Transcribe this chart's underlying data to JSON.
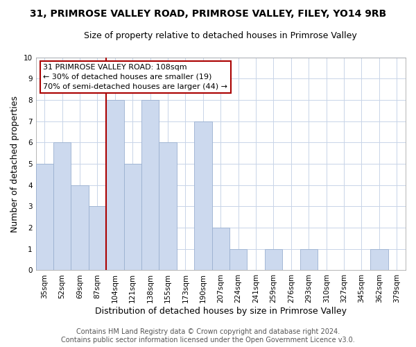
{
  "title": "31, PRIMROSE VALLEY ROAD, PRIMROSE VALLEY, FILEY, YO14 9RB",
  "subtitle": "Size of property relative to detached houses in Primrose Valley",
  "xlabel": "Distribution of detached houses by size in Primrose Valley",
  "ylabel": "Number of detached properties",
  "bar_labels": [
    "35sqm",
    "52sqm",
    "69sqm",
    "87sqm",
    "104sqm",
    "121sqm",
    "138sqm",
    "155sqm",
    "173sqm",
    "190sqm",
    "207sqm",
    "224sqm",
    "241sqm",
    "259sqm",
    "276sqm",
    "293sqm",
    "310sqm",
    "327sqm",
    "345sqm",
    "362sqm",
    "379sqm"
  ],
  "bar_values": [
    5,
    6,
    4,
    3,
    8,
    5,
    8,
    6,
    0,
    7,
    2,
    1,
    0,
    1,
    0,
    1,
    0,
    0,
    0,
    1,
    0
  ],
  "bar_color": "#ccd9ee",
  "bar_edge_color": "#9ab0d0",
  "property_line_index": 4,
  "property_line_color": "#aa0000",
  "ylim": [
    0,
    10
  ],
  "yticks": [
    0,
    1,
    2,
    3,
    4,
    5,
    6,
    7,
    8,
    9,
    10
  ],
  "annotation_title": "31 PRIMROSE VALLEY ROAD: 108sqm",
  "annotation_line1": "← 30% of detached houses are smaller (19)",
  "annotation_line2": "70% of semi-detached houses are larger (44) →",
  "annotation_box_color": "#ffffff",
  "annotation_box_edge": "#aa0000",
  "footer1": "Contains HM Land Registry data © Crown copyright and database right 2024.",
  "footer2": "Contains public sector information licensed under the Open Government Licence v3.0.",
  "background_color": "#ffffff",
  "grid_color": "#c8d4e8",
  "title_fontsize": 10,
  "subtitle_fontsize": 9,
  "axis_label_fontsize": 9,
  "tick_fontsize": 7.5,
  "annotation_fontsize": 8,
  "footer_fontsize": 7
}
